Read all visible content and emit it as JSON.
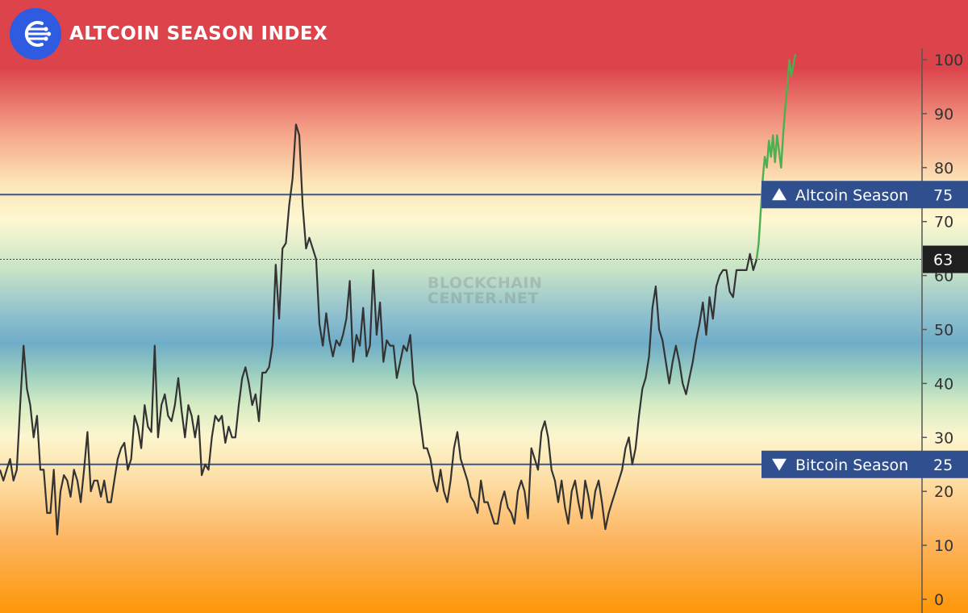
{
  "header": {
    "title": "ALTCOIN SEASON INDEX",
    "watermark_line1": "BLOCKCHAIN",
    "watermark_line2": "CENTER.NET"
  },
  "colors": {
    "brand_blue": "#2f5be0",
    "threshold_line": "#3b5694",
    "label_bg": "#2f4f8f",
    "series_main": "#333333",
    "series_recent": "#4caf50",
    "band_top": "#dc434b",
    "band_mid": "#70adc7",
    "band_bottom": "#ff9708"
  },
  "chart_data": {
    "type": "line",
    "title": "ALTCOIN SEASON INDEX",
    "xlabel": "",
    "ylabel": "",
    "ylim": [
      0,
      100
    ],
    "yticks": [
      0,
      10,
      20,
      30,
      40,
      50,
      60,
      70,
      80,
      90,
      100
    ],
    "y_axis_position": "right",
    "grid": false,
    "current_value": 63,
    "thresholds": [
      {
        "label": "Altcoin Season",
        "value": 75,
        "marker": "up"
      },
      {
        "label": "Bitcoin Season",
        "value": 25,
        "marker": "down"
      }
    ],
    "series": [
      {
        "color": "#333333",
        "values": [
          24,
          22,
          24,
          26,
          22,
          24,
          36,
          47,
          39,
          36,
          30,
          34,
          24,
          24,
          16,
          16,
          24,
          12,
          20,
          23,
          22,
          19,
          24,
          22,
          18,
          24,
          31,
          20,
          22,
          22,
          19,
          22,
          18,
          18,
          22,
          26,
          28,
          29,
          24,
          26,
          34,
          32,
          28,
          36,
          32,
          31,
          47,
          30,
          36,
          38,
          34,
          33,
          36,
          41,
          35,
          30,
          36,
          34,
          30,
          34,
          23,
          25,
          24,
          30,
          34,
          33,
          34,
          29,
          32,
          30,
          30,
          36,
          41,
          43,
          40,
          36,
          38,
          33,
          42,
          42,
          43,
          47,
          62,
          52,
          65,
          66,
          73,
          78,
          88,
          86,
          73,
          65,
          67,
          65,
          63,
          51,
          47,
          53,
          48,
          45,
          48,
          47,
          49,
          52,
          59,
          44,
          49,
          47,
          54,
          45,
          47,
          61,
          49,
          55,
          44,
          48,
          47,
          47,
          41,
          44,
          47,
          46,
          49,
          40,
          38,
          33,
          28,
          28,
          26,
          22,
          20,
          24,
          20,
          18,
          22,
          28,
          31,
          26,
          24,
          22,
          19,
          18,
          16,
          22,
          18,
          18,
          16,
          14,
          14,
          18,
          20,
          17,
          16,
          14,
          20,
          22,
          20,
          15,
          28,
          26,
          24,
          31,
          33,
          30,
          24,
          22,
          18,
          22,
          17,
          14,
          20,
          22,
          18,
          15,
          22,
          19,
          15,
          20,
          22,
          18,
          13,
          16,
          18,
          20,
          22,
          24,
          28,
          30,
          25,
          28,
          34,
          39,
          41,
          45,
          54,
          58,
          50,
          48,
          44,
          40,
          44,
          47,
          44,
          40,
          38,
          41,
          44,
          48,
          51,
          55,
          49,
          56,
          52,
          58,
          60,
          61,
          61,
          57,
          56,
          61,
          61,
          61,
          61,
          64,
          61,
          63
        ]
      },
      {
        "color": "#4caf50",
        "values": [
          63,
          66,
          72,
          78,
          82,
          80,
          85,
          82,
          86,
          81,
          86,
          83,
          80,
          86,
          91,
          95,
          100,
          97,
          99,
          101
        ]
      }
    ]
  }
}
